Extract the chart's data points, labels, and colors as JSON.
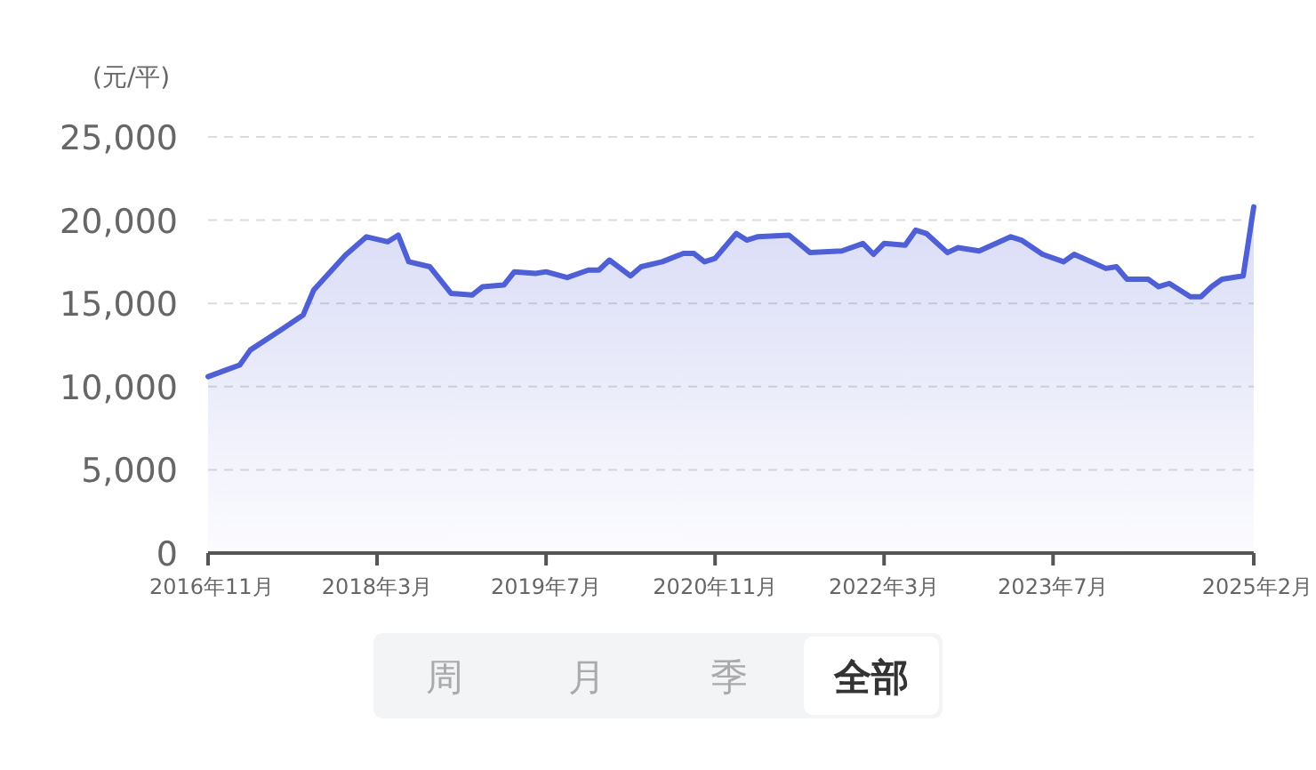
{
  "chart_data": {
    "type": "area",
    "ylabel": "(元/平)",
    "x": [
      "2016-11",
      "2017-02",
      "2017-03",
      "2017-06",
      "2017-08",
      "2017-09",
      "2017-12",
      "2018-02",
      "2018-04",
      "2018-05",
      "2018-06",
      "2018-08",
      "2018-10",
      "2018-12",
      "2019-01",
      "2019-03",
      "2019-04",
      "2019-06",
      "2019-07",
      "2019-09",
      "2019-11",
      "2019-12",
      "2020-01",
      "2020-03",
      "2020-04",
      "2020-06",
      "2020-08",
      "2020-09",
      "2020-10",
      "2020-11",
      "2021-01",
      "2021-02",
      "2021-03",
      "2021-06",
      "2021-08",
      "2021-11",
      "2022-01",
      "2022-02",
      "2022-03",
      "2022-05",
      "2022-06",
      "2022-07",
      "2022-09",
      "2022-10",
      "2022-12",
      "2023-03",
      "2023-04",
      "2023-06",
      "2023-08",
      "2023-09",
      "2023-12",
      "2024-01",
      "2024-02",
      "2024-04",
      "2024-05",
      "2024-06",
      "2024-08",
      "2024-09",
      "2024-10",
      "2024-11",
      "2025-01",
      "2025-02"
    ],
    "series": [
      {
        "color": "#4f5fd6",
        "values": [
          10600,
          11300,
          12200,
          13450,
          14300,
          15800,
          17900,
          19000,
          18700,
          19100,
          17500,
          17200,
          15600,
          15500,
          16000,
          16100,
          16900,
          16800,
          16900,
          16550,
          17000,
          17000,
          17600,
          16650,
          17200,
          17500,
          18000,
          18000,
          17500,
          17700,
          19200,
          18800,
          19000,
          19100,
          18050,
          18150,
          18600,
          17950,
          18600,
          18500,
          19400,
          19200,
          18050,
          18350,
          18150,
          19000,
          18800,
          17950,
          17500,
          17950,
          17100,
          17200,
          16450,
          16450,
          16000,
          16200,
          15400,
          15400,
          16000,
          16450,
          16650,
          20800
        ]
      }
    ],
    "xlim": [
      "2016-11",
      "2025-02"
    ],
    "xticks": [
      {
        "value": "2016-11",
        "label": "2016年11月"
      },
      {
        "value": "2018-03",
        "label": "2018年3月"
      },
      {
        "value": "2019-07",
        "label": "2019年7月"
      },
      {
        "value": "2020-11",
        "label": "2020年11月"
      },
      {
        "value": "2022-03",
        "label": "2022年3月"
      },
      {
        "value": "2023-07",
        "label": "2023年7月"
      },
      {
        "value": "2025-02",
        "label": "2025年2月"
      }
    ],
    "ylim": [
      0,
      25000
    ],
    "yticks": [
      {
        "value": 0,
        "label": "0"
      },
      {
        "value": 5000,
        "label": "5,000"
      },
      {
        "value": 10000,
        "label": "10,000"
      },
      {
        "value": 15000,
        "label": "15,000"
      },
      {
        "value": 20000,
        "label": "20,000"
      },
      {
        "value": 25000,
        "label": "25,000"
      }
    ],
    "grid": "y",
    "annotations": [
      "周",
      "月",
      "季",
      "全部"
    ]
  }
}
